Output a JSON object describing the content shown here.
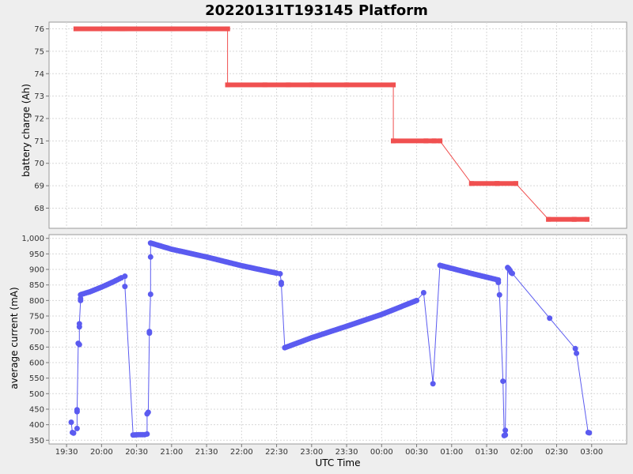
{
  "chart_data": {
    "title": "20220131T193145 Platform",
    "type": "line",
    "grid": true,
    "x_axis": {
      "label": "UTC Time",
      "start": "19:15",
      "end": "03:30",
      "ticks": [
        "19:30",
        "20:00",
        "20:30",
        "21:00",
        "21:30",
        "22:00",
        "22:30",
        "23:00",
        "23:30",
        "00:00",
        "00:30",
        "01:00",
        "01:30",
        "02:00",
        "02:30",
        "03:00"
      ]
    },
    "panels": [
      {
        "ylabel": "battery charge (Ah)",
        "ylim": [
          67.1,
          76.3
        ],
        "yticks": [
          68,
          69,
          70,
          71,
          72,
          73,
          74,
          75,
          76
        ],
        "series": [
          {
            "color": "#f05050",
            "points": [
              [
                "19:38",
                76
              ],
              [
                "20:16",
                76
              ],
              [
                "20:18",
                76
              ],
              [
                "20:20",
                76
              ],
              [
                "21:01",
                76
              ],
              [
                "21:48",
                76
              ],
              [
                "21:48",
                73.5
              ],
              [
                "22:20",
                73.5
              ],
              [
                "22:40",
                73.5
              ],
              [
                "23:00",
                73.5
              ],
              [
                "23:30",
                73.5
              ],
              [
                "00:10",
                73.5
              ],
              [
                "00:10",
                71
              ],
              [
                "00:38",
                71
              ],
              [
                "00:45",
                71
              ],
              [
                "00:50",
                71
              ],
              [
                "01:17",
                69.1
              ],
              [
                "01:39",
                69.1
              ],
              [
                "01:55",
                69.1
              ],
              [
                "02:23",
                67.5
              ],
              [
                "02:45",
                67.5
              ],
              [
                "02:56",
                67.5
              ]
            ]
          }
        ]
      },
      {
        "ylabel": "average current (mA)",
        "ylim": [
          338,
          1012
        ],
        "yticks": [
          "350",
          "400",
          "450",
          "500",
          "550",
          "600",
          "650",
          "700",
          "750",
          "800",
          "850",
          "900",
          "950",
          "1,000"
        ],
        "series": [
          {
            "color": "#5b5bf0",
            "points": [
              [
                "19:34",
                408
              ],
              [
                "19:35",
                375
              ],
              [
                "19:36",
                373
              ],
              [
                "19:39",
                388
              ],
              [
                "19:39",
                448
              ],
              [
                "19:39",
                442
              ],
              [
                "19:40",
                662
              ],
              [
                "19:41",
                658
              ],
              [
                "19:41",
                715
              ],
              [
                "19:41",
                725
              ],
              [
                "19:42",
                800
              ],
              [
                "19:42",
                806
              ],
              [
                "19:42",
                818
              ],
              [
                "19:43",
                820
              ],
              [
                "19:50",
                828
              ],
              [
                "20:00",
                843
              ],
              [
                "20:10",
                860
              ],
              [
                "20:17",
                873
              ],
              [
                "20:20",
                878
              ],
              [
                "20:20",
                845
              ],
              [
                "20:27",
                367
              ],
              [
                "20:32",
                368
              ],
              [
                "20:37",
                368
              ],
              [
                "20:39",
                370
              ],
              [
                "20:39",
                435
              ],
              [
                "20:40",
                440
              ],
              [
                "20:41",
                695
              ],
              [
                "20:41",
                700
              ],
              [
                "20:42",
                820
              ],
              [
                "20:42",
                940
              ],
              [
                "20:42",
                985
              ],
              [
                "21:00",
                965
              ],
              [
                "21:30",
                940
              ],
              [
                "22:00",
                912
              ],
              [
                "22:30",
                888
              ],
              [
                "22:33",
                886
              ],
              [
                "22:34",
                858
              ],
              [
                "22:34",
                852
              ],
              [
                "22:37",
                648
              ],
              [
                "23:00",
                680
              ],
              [
                "23:30",
                717
              ],
              [
                "00:00",
                755
              ],
              [
                "00:30",
                800
              ],
              [
                "00:36",
                825
              ],
              [
                "00:44",
                532
              ],
              [
                "00:50",
                913
              ],
              [
                "01:18",
                886
              ],
              [
                "01:40",
                866
              ],
              [
                "01:40",
                858
              ],
              [
                "01:41",
                818
              ],
              [
                "01:44",
                540
              ],
              [
                "01:45",
                365
              ],
              [
                "01:46",
                367
              ],
              [
                "01:46",
                382
              ],
              [
                "01:48",
                906
              ],
              [
                "01:49",
                902
              ],
              [
                "01:50",
                897
              ],
              [
                "01:51",
                890
              ],
              [
                "01:52",
                887
              ],
              [
                "02:24",
                743
              ],
              [
                "02:46",
                645
              ],
              [
                "02:47",
                630
              ],
              [
                "02:57",
                375
              ],
              [
                "02:58",
                374
              ]
            ]
          }
        ]
      }
    ]
  }
}
